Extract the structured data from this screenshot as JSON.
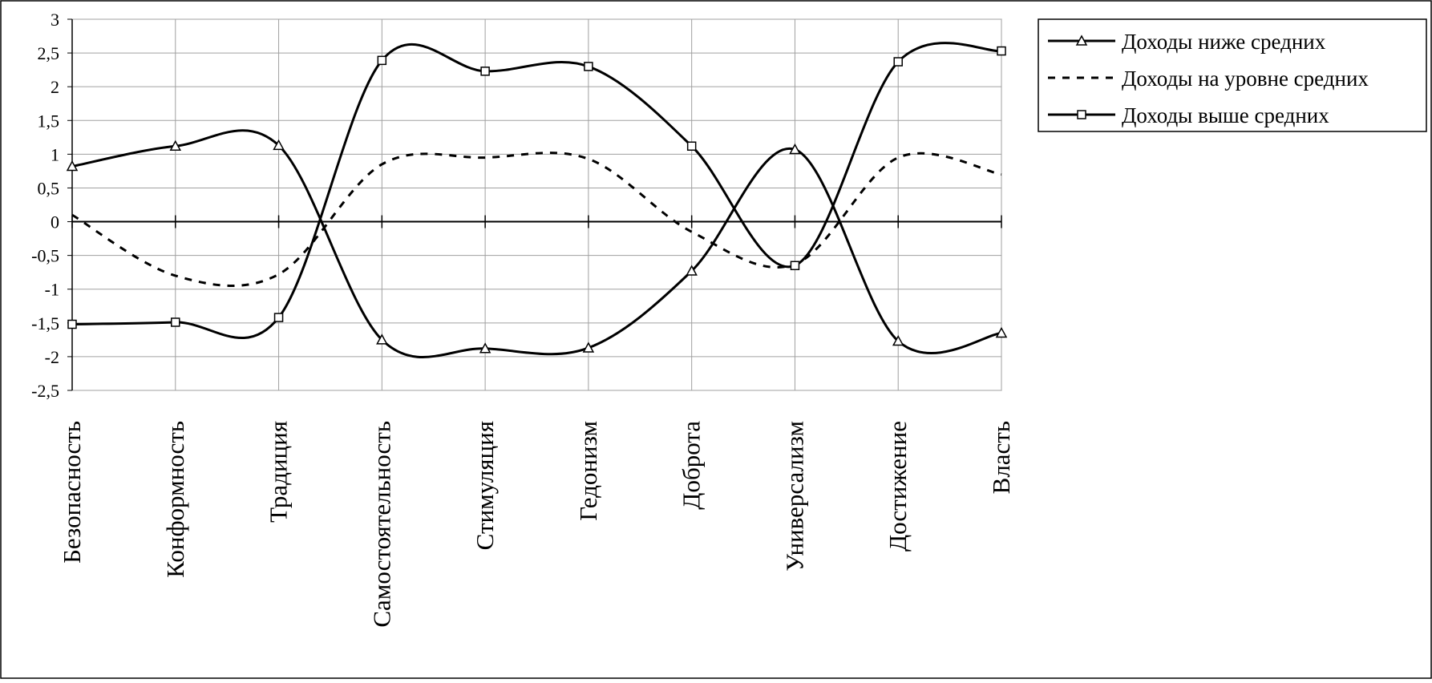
{
  "chart_data": {
    "type": "line",
    "title": "",
    "xlabel": "",
    "ylabel": "",
    "categories": [
      "Безопасность",
      "Конформность",
      "Традиция",
      "Самостоятельность",
      "Стимуляция",
      "Гедонизм",
      "Доброта",
      "Универсализм",
      "Достижение",
      "Власть"
    ],
    "ylim": [
      -2.5,
      3
    ],
    "yticks": [
      3,
      2.5,
      2,
      1.5,
      1,
      0.5,
      0,
      -0.5,
      -1,
      -1.5,
      -2,
      -2.5
    ],
    "ytick_labels": [
      "3",
      "2,5",
      "2",
      "1,5",
      "1",
      "0,5",
      "0",
      "-0,5",
      "-1",
      "-1,5",
      "-2",
      "-2,5"
    ],
    "grid": true,
    "legend_position": "top-right",
    "series": [
      {
        "name": "Доходы ниже средних",
        "values": [
          0.82,
          1.12,
          1.13,
          -1.75,
          -1.88,
          -1.87,
          -0.73,
          1.07,
          -1.77,
          -1.65
        ],
        "line_style": "solid",
        "marker": "triangle",
        "color": "#000000"
      },
      {
        "name": "Доходы на уровне средних",
        "values": [
          0.1,
          -0.8,
          -0.78,
          0.85,
          0.95,
          0.93,
          -0.15,
          -0.63,
          0.95,
          0.7
        ],
        "line_style": "dashed",
        "marker": "none",
        "color": "#000000"
      },
      {
        "name": "Доходы выше средних",
        "values": [
          -1.52,
          -1.49,
          -1.42,
          2.39,
          2.23,
          2.3,
          1.12,
          -0.65,
          2.37,
          2.53
        ],
        "line_style": "solid",
        "marker": "square",
        "color": "#000000"
      }
    ]
  },
  "colors": {
    "grid": "#a0a0a0",
    "line": "#000000",
    "background": "#ffffff"
  }
}
